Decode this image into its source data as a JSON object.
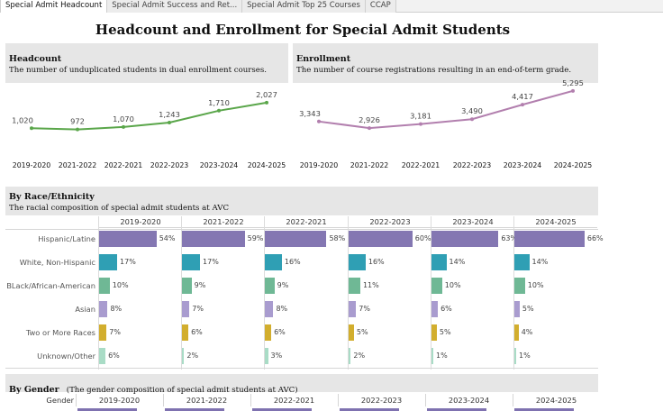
{
  "tabs": [
    "Special Admit Headcount",
    "Special Admit Success and Ret...",
    "Special Admit Top 25 Courses",
    "CCAP"
  ],
  "page_title": "Headcount and Enrollment for Special Admit Students",
  "headcount": {
    "title": "Headcount",
    "subtitle": "The number of unduplicated students in dual enrollment courses."
  },
  "enrollment": {
    "title": "Enrollment",
    "subtitle": "The number of course registrations resulting in an end-of-term grade."
  },
  "race": {
    "title": "By Race/Ethnicity",
    "subtitle": "The racial composition of special admit students at AVC"
  },
  "gender": {
    "title": "By Gender",
    "subtitle": "(The gender composition of special admit students at AVC)",
    "column_label": "Gender"
  },
  "colors": {
    "headcount_line": "#5aa64a",
    "enrollment_line": "#b27fae",
    "race": [
      "#8477b2",
      "#2f9fb4",
      "#6fb895",
      "#a99ccf",
      "#d2ae2e",
      "#a9dcc6"
    ]
  },
  "chart_data": [
    {
      "type": "line",
      "title": "Headcount",
      "categories": [
        "2019-2020",
        "2021-2022",
        "2022-2021",
        "2022-2023",
        "2023-2024",
        "2024-2025"
      ],
      "values": [
        1020,
        972,
        1070,
        1243,
        1710,
        2027
      ],
      "labels": [
        "1,020",
        "972",
        "1,070",
        "1,243",
        "1,710",
        "2,027"
      ],
      "ylim": [
        0,
        2200
      ]
    },
    {
      "type": "line",
      "title": "Enrollment",
      "categories": [
        "2019-2020",
        "2021-2022",
        "2022-2021",
        "2022-2023",
        "2023-2024",
        "2024-2025"
      ],
      "values": [
        3343,
        2926,
        3181,
        3490,
        4417,
        5295
      ],
      "labels": [
        "3,343",
        "2,926",
        "3,181",
        "3,490",
        "4,417",
        "5,295"
      ],
      "ylim": [
        0,
        5400
      ]
    },
    {
      "type": "bar",
      "title": "By Race/Ethnicity",
      "years": [
        "2019-2020",
        "2021-2022",
        "2022-2021",
        "2022-2023",
        "2023-2024",
        "2024-2025"
      ],
      "categories": [
        "Hispanic/Latine",
        "White, Non-Hispanic",
        "BLack/African-American",
        "Asian",
        "Two or More Races",
        "Unknown/Other"
      ],
      "series": [
        {
          "name": "2019-2020",
          "values": [
            54,
            17,
            10,
            8,
            7,
            6
          ]
        },
        {
          "name": "2021-2022",
          "values": [
            59,
            17,
            9,
            7,
            6,
            2
          ]
        },
        {
          "name": "2022-2021",
          "values": [
            58,
            16,
            9,
            8,
            6,
            3
          ]
        },
        {
          "name": "2022-2023",
          "values": [
            60,
            16,
            11,
            7,
            5,
            2
          ]
        },
        {
          "name": "2023-2024",
          "values": [
            63,
            14,
            10,
            6,
            5,
            1
          ]
        },
        {
          "name": "2024-2025",
          "values": [
            66,
            14,
            10,
            5,
            4,
            1
          ]
        }
      ],
      "ylim": [
        0,
        100
      ]
    },
    {
      "type": "bar",
      "title": "By Gender",
      "years": [
        "2019-2020",
        "2021-2022",
        "2022-2021",
        "2022-2023",
        "2023-2024",
        "2024-2025"
      ]
    }
  ]
}
